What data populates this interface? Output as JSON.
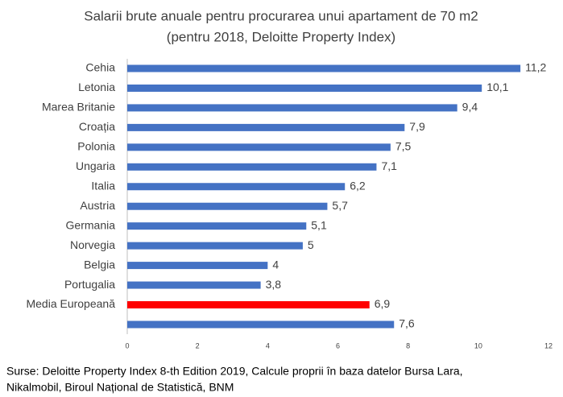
{
  "chart_data": {
    "type": "barh",
    "title": [
      "Salarii brute anuale pentru procurarea unui apartament de 70 m2",
      "(pentru 2018, Deloitte Property Index)"
    ],
    "categories": [
      "Cehia",
      "Letonia",
      "Marea Britanie",
      "Croația",
      "Polonia",
      "Ungaria",
      "Italia",
      "Austria",
      "Germania",
      "Norvegia",
      "Belgia",
      "Portugalia",
      "Media Europeană",
      null
    ],
    "values": [
      11.2,
      10.1,
      9.4,
      7.9,
      7.5,
      7.1,
      6.2,
      5.7,
      5.1,
      5,
      4,
      3.8,
      6.9,
      7.6
    ],
    "value_labels": [
      "11,2",
      "10,1",
      "9,4",
      "7,9",
      "7,5",
      "7,1",
      "6,2",
      "5,7",
      "5,1",
      "5",
      "4",
      "3,8",
      "6,9",
      "7,6"
    ],
    "colors": [
      "#4472c4",
      "#4472c4",
      "#4472c4",
      "#4472c4",
      "#4472c4",
      "#4472c4",
      "#4472c4",
      "#4472c4",
      "#4472c4",
      "#4472c4",
      "#4472c4",
      "#4472c4",
      "#ff0000",
      "#4472c4"
    ],
    "xlim": [
      0,
      12
    ],
    "xticks": [
      0,
      2,
      4,
      6,
      8,
      10,
      12
    ],
    "grid": false,
    "source": [
      "Surse: Deloitte Property Index 8-th Edition 2019, Calcule proprii în baza datelor Bursa Lara,",
      "Nikalmobil, Biroul Național de Statistică, BNM"
    ]
  }
}
